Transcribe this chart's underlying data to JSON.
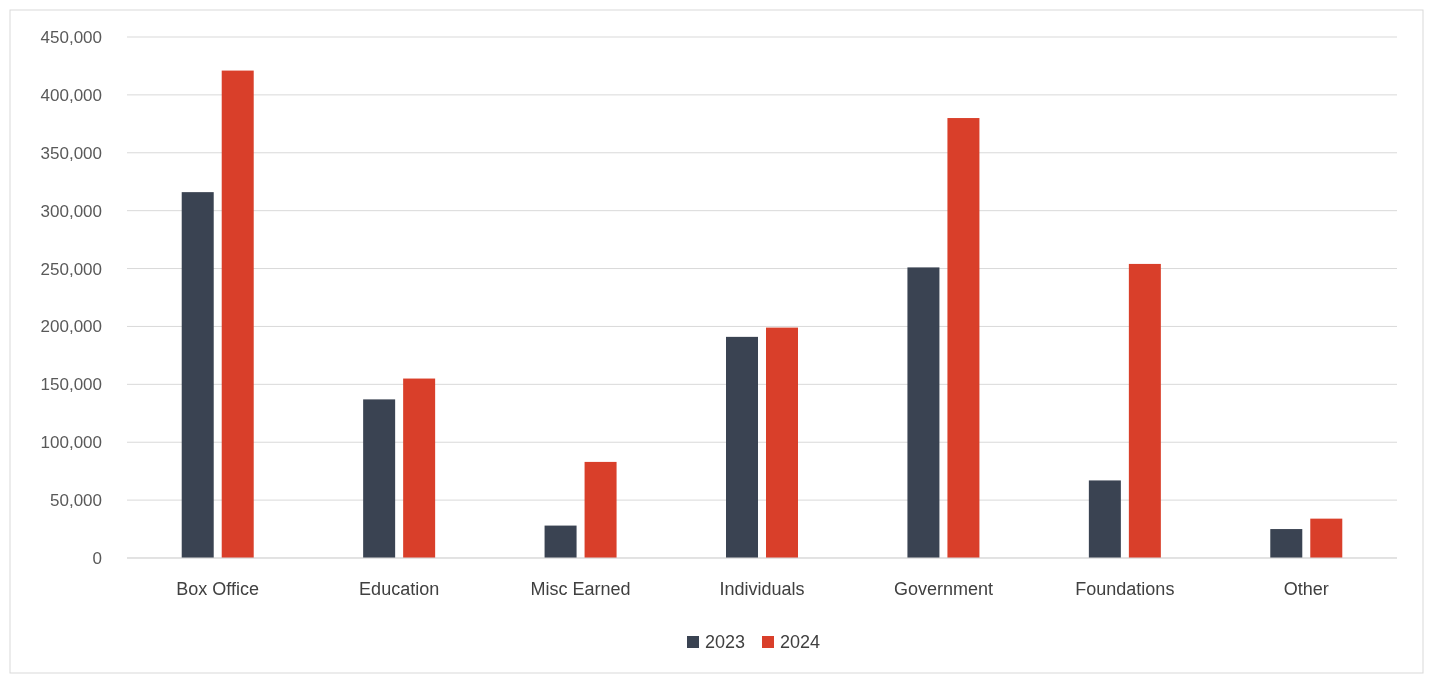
{
  "chart_data": {
    "type": "bar",
    "categories": [
      "Box Office",
      "Education",
      "Misc Earned",
      "Individuals",
      "Government",
      "Foundations",
      "Other"
    ],
    "series": [
      {
        "name": "2023",
        "color": "#3a4352",
        "values": [
          316000,
          137000,
          28000,
          191000,
          251000,
          67000,
          25000
        ]
      },
      {
        "name": "2024",
        "color": "#d93f2a",
        "values": [
          421000,
          155000,
          83000,
          199000,
          380000,
          254000,
          34000
        ]
      }
    ],
    "ylim": [
      0,
      450000
    ],
    "yticks": [
      {
        "value": 0,
        "label": "0"
      },
      {
        "value": 50000,
        "label": "50,000"
      },
      {
        "value": 100000,
        "label": "100,000"
      },
      {
        "value": 150000,
        "label": "150,000"
      },
      {
        "value": 200000,
        "label": "200,000"
      },
      {
        "value": 250000,
        "label": "250,000"
      },
      {
        "value": 300000,
        "label": "300,000"
      },
      {
        "value": 350000,
        "label": "350,000"
      },
      {
        "value": 400000,
        "label": "400,000"
      },
      {
        "value": 450000,
        "label": "450,000"
      }
    ],
    "grid": "y",
    "legend": "bottom"
  }
}
